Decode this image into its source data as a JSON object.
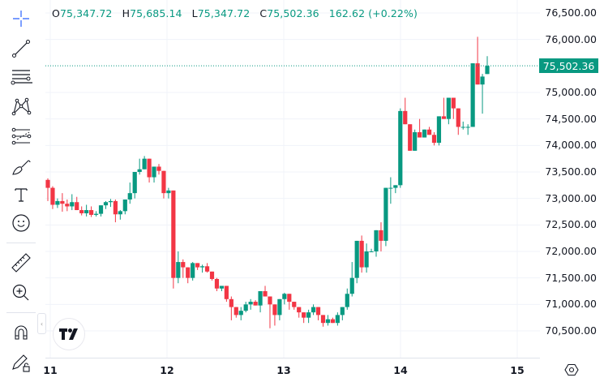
{
  "legend": {
    "open_label": "O",
    "open": "75,347.72",
    "high_label": "H",
    "high": "75,685.14",
    "low_label": "L",
    "low": "75,347.72",
    "close_label": "C",
    "close": "75,502.36",
    "change": "162.62 (+0.22%)"
  },
  "last_price_label": "75,502.36",
  "colors": {
    "up": "#089981",
    "down": "#F23645",
    "grid": "#f0f3fa",
    "text": "#131722"
  },
  "toolbar": {
    "items": [
      {
        "name": "crosshair-icon"
      },
      {
        "name": "trend-line-icon"
      },
      {
        "name": "fib-retracement-icon"
      },
      {
        "name": "xabcd-pattern-icon"
      },
      {
        "name": "forecast-icon"
      },
      {
        "name": "brush-icon"
      },
      {
        "name": "text-icon"
      },
      {
        "name": "emoji-icon"
      },
      {
        "name": "ruler-icon"
      },
      {
        "name": "zoom-in-icon"
      },
      {
        "name": "magnet-icon"
      },
      {
        "name": "lock-drawings-icon"
      }
    ]
  },
  "price_axis": {
    "ticks": [
      "76,500.00",
      "76,000.00",
      "75,000.00",
      "74,500.00",
      "74,000.00",
      "73,500.00",
      "73,000.00",
      "72,500.00",
      "72,000.00",
      "71,500.00",
      "71,000.00",
      "70,500.00"
    ]
  },
  "time_axis": {
    "labels": [
      "11",
      "12",
      "13",
      "14",
      "15"
    ]
  },
  "chart_data": {
    "type": "candlestick",
    "title": "",
    "xlabel": "",
    "ylabel": "",
    "ylim": [
      70200,
      76700
    ],
    "x_ticks": [
      "11",
      "12",
      "13",
      "14",
      "15"
    ],
    "y_ticks": [
      70500,
      71000,
      71500,
      72000,
      72500,
      73000,
      73500,
      74000,
      74500,
      75000,
      76000,
      76500
    ],
    "last_price": 75502.36,
    "ohlc_last": {
      "open": 75347.72,
      "high": 75685.14,
      "low": 75347.72,
      "close": 75502.36,
      "change": 162.62,
      "change_pct": 0.22
    },
    "candles": [
      [
        73350,
        73380,
        72950,
        73200
      ],
      [
        73200,
        73230,
        72800,
        72880
      ],
      [
        72880,
        73000,
        72820,
        72950
      ],
      [
        72950,
        73100,
        72750,
        72900
      ],
      [
        72900,
        72980,
        72760,
        72850
      ],
      [
        72850,
        73080,
        72780,
        72930
      ],
      [
        72930,
        73030,
        72850,
        72780
      ],
      [
        72780,
        72850,
        72680,
        72720
      ],
      [
        72720,
        72880,
        72660,
        72780
      ],
      [
        72780,
        72850,
        72650,
        72690
      ],
      [
        72690,
        72760,
        72660,
        72710
      ],
      [
        72710,
        72850,
        72660,
        72870
      ],
      [
        72870,
        72950,
        72800,
        72930
      ],
      [
        72930,
        72990,
        72840,
        72950
      ],
      [
        72950,
        72980,
        72550,
        72700
      ],
      [
        72700,
        72780,
        72600,
        72760
      ],
      [
        72760,
        72980,
        72700,
        72980
      ],
      [
        72980,
        73300,
        72900,
        73100
      ],
      [
        73100,
        73150,
        73000,
        73500
      ],
      [
        73500,
        73750,
        73450,
        73550
      ],
      [
        73550,
        73800,
        73550,
        73750
      ],
      [
        73750,
        73650,
        73300,
        73400
      ],
      [
        73400,
        73600,
        73300,
        73600
      ],
      [
        73600,
        73650,
        73450,
        73520
      ],
      [
        73520,
        73450,
        73000,
        73100
      ],
      [
        73100,
        73200,
        73000,
        73150
      ],
      [
        73150,
        73150,
        71300,
        71500
      ],
      [
        71500,
        72000,
        71400,
        71800
      ],
      [
        71800,
        71850,
        71500,
        71700
      ],
      [
        71700,
        71550,
        71400,
        71500
      ],
      [
        71500,
        71800,
        71450,
        71780
      ],
      [
        71780,
        71750,
        71650,
        71700
      ],
      [
        71700,
        71750,
        71600,
        71720
      ],
      [
        71720,
        71780,
        71600,
        71620
      ],
      [
        71620,
        71600,
        71450,
        71480
      ],
      [
        71480,
        71500,
        71250,
        71300
      ],
      [
        71300,
        71350,
        71250,
        71350
      ],
      [
        71350,
        71300,
        71050,
        71100
      ],
      [
        71100,
        71150,
        70700,
        70950
      ],
      [
        70950,
        70900,
        70750,
        70800
      ],
      [
        70800,
        70950,
        70700,
        70880
      ],
      [
        70880,
        71050,
        70850,
        71000
      ],
      [
        71000,
        71100,
        70900,
        71050
      ],
      [
        71050,
        71080,
        71000,
        70980
      ],
      [
        70980,
        71200,
        70850,
        71250
      ],
      [
        71250,
        71350,
        71200,
        71150
      ],
      [
        71150,
        71100,
        70550,
        71000
      ],
      [
        71000,
        70900,
        70600,
        70800
      ],
      [
        70800,
        70900,
        70700,
        71100
      ],
      [
        71100,
        71220,
        71000,
        71200
      ],
      [
        71200,
        71150,
        70900,
        71050
      ],
      [
        71050,
        71000,
        70900,
        70950
      ],
      [
        70950,
        70900,
        70750,
        70850
      ],
      [
        70850,
        70750,
        70650,
        70750
      ],
      [
        70750,
        70900,
        70650,
        70850
      ],
      [
        70850,
        71000,
        70800,
        70950
      ],
      [
        70950,
        70900,
        70700,
        70800
      ],
      [
        70800,
        70780,
        70580,
        70650
      ],
      [
        70650,
        70800,
        70600,
        70720
      ],
      [
        70720,
        70750,
        70650,
        70650
      ],
      [
        70650,
        70850,
        70600,
        70800
      ],
      [
        70800,
        70950,
        70700,
        70950
      ],
      [
        70950,
        71300,
        70900,
        71200
      ],
      [
        71200,
        71800,
        71150,
        71500
      ],
      [
        71500,
        72000,
        71400,
        72200
      ],
      [
        72200,
        72300,
        71600,
        71700
      ],
      [
        71700,
        72150,
        71600,
        72000
      ],
      [
        72000,
        72050,
        72050,
        72000
      ],
      [
        72000,
        72350,
        71900,
        72400
      ],
      [
        72400,
        72550,
        72000,
        72200
      ],
      [
        72200,
        72300,
        72100,
        73200
      ],
      [
        73200,
        73400,
        72900,
        73200
      ],
      [
        73200,
        73200,
        73100,
        73250
      ],
      [
        73250,
        74700,
        73200,
        74650
      ],
      [
        74650,
        74900,
        74400,
        74400
      ],
      [
        74400,
        74300,
        73900,
        73900
      ],
      [
        73900,
        74300,
        74050,
        74250
      ],
      [
        74250,
        74500,
        74200,
        74150
      ],
      [
        74150,
        74300,
        74200,
        74300
      ],
      [
        74300,
        74350,
        74200,
        74200
      ],
      [
        74200,
        74250,
        74000,
        74050
      ],
      [
        74050,
        74500,
        74000,
        74550
      ],
      [
        74550,
        74900,
        74500,
        74500
      ],
      [
        74500,
        74850,
        74400,
        74900
      ],
      [
        74900,
        74800,
        74500,
        74700
      ],
      [
        74700,
        74600,
        74200,
        74350
      ],
      [
        74350,
        74450,
        74300,
        74350
      ],
      [
        74350,
        74400,
        74200,
        74350
      ],
      [
        74350,
        75550,
        74500,
        75550
      ],
      [
        75550,
        76050,
        75200,
        75150
      ],
      [
        75150,
        75350,
        74600,
        75300
      ],
      [
        75347.72,
        75685.14,
        75347.72,
        75502.36
      ]
    ]
  }
}
